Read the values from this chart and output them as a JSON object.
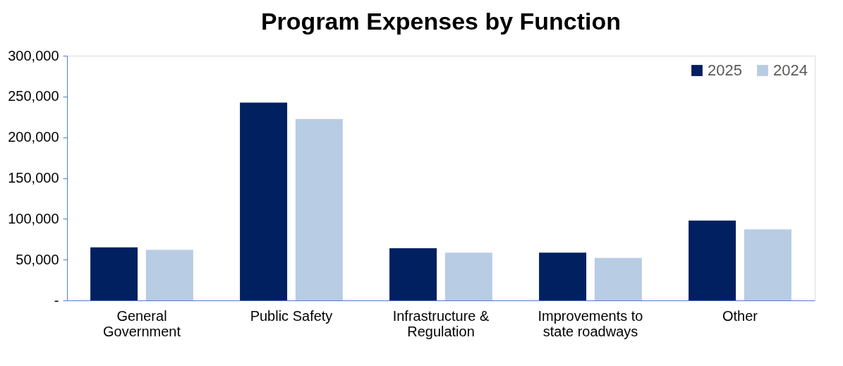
{
  "chart_data": {
    "type": "bar",
    "title": "Program Expenses by Function",
    "categories": [
      "General Government",
      "Public Safety",
      "Infrastructure & Regulation",
      "Improvements to state roadways",
      "Other"
    ],
    "series": [
      {
        "name": "2025",
        "color": "#002060",
        "values": [
          65000,
          242500,
          64000,
          58500,
          98000
        ]
      },
      {
        "name": "2024",
        "color": "#b8cce4",
        "values": [
          62000,
          222500,
          58500,
          52000,
          87000
        ]
      }
    ],
    "ylim": [
      0,
      300000
    ],
    "yticks": [
      {
        "value": 0,
        "label": "-"
      },
      {
        "value": 50000,
        "label": "50,000"
      },
      {
        "value": 100000,
        "label": "100,000"
      },
      {
        "value": 150000,
        "label": "150,000"
      },
      {
        "value": 200000,
        "label": "200,000"
      },
      {
        "value": 250000,
        "label": "250,000"
      },
      {
        "value": 300000,
        "label": "300,000"
      }
    ],
    "grid": false,
    "legend": "top right"
  }
}
